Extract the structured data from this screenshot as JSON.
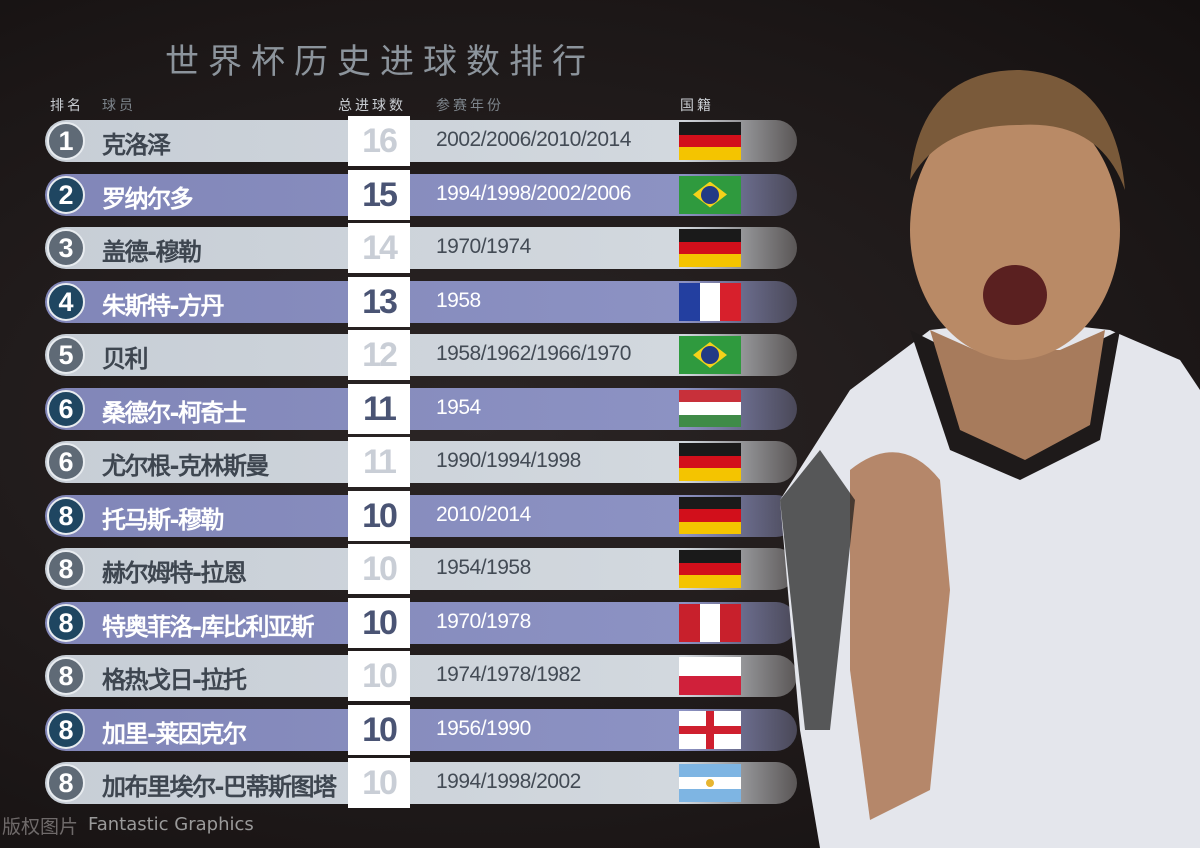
{
  "title": "世界杯历史进球数排行",
  "headers": {
    "rank": "排名",
    "player": "球员",
    "goals": "总进球数",
    "years": "参赛年份",
    "nation": "国籍"
  },
  "chart_data": {
    "type": "table",
    "title": "世界杯历史进球数排行",
    "columns": [
      "排名",
      "球员",
      "总进球数",
      "参赛年份",
      "国籍"
    ],
    "rows": [
      {
        "rank": "1",
        "player": "克洛泽",
        "goals": "16",
        "years": "2002/2006/2010/2014",
        "nation": "germany"
      },
      {
        "rank": "2",
        "player": "罗纳尔多",
        "goals": "15",
        "years": "1994/1998/2002/2006",
        "nation": "brazil"
      },
      {
        "rank": "3",
        "player": "盖德-穆勒",
        "goals": "14",
        "years": "1970/1974",
        "nation": "germany"
      },
      {
        "rank": "4",
        "player": "朱斯特-方丹",
        "goals": "13",
        "years": "1958",
        "nation": "france"
      },
      {
        "rank": "5",
        "player": "贝利",
        "goals": "12",
        "years": "1958/1962/1966/1970",
        "nation": "brazil"
      },
      {
        "rank": "6",
        "player": "桑德尔-柯奇士",
        "goals": "11",
        "years": "1954",
        "nation": "hungary"
      },
      {
        "rank": "6",
        "player": "尤尔根-克林斯曼",
        "goals": "11",
        "years": "1990/1994/1998",
        "nation": "germany"
      },
      {
        "rank": "8",
        "player": "托马斯-穆勒",
        "goals": "10",
        "years": "2010/2014",
        "nation": "germany"
      },
      {
        "rank": "8",
        "player": "赫尔姆特-拉恩",
        "goals": "10",
        "years": "1954/1958",
        "nation": "germany"
      },
      {
        "rank": "8",
        "player": "特奥菲洛-库比利亚斯",
        "goals": "10",
        "years": "1970/1978",
        "nation": "peru"
      },
      {
        "rank": "8",
        "player": "格热戈日-拉托",
        "goals": "10",
        "years": "1974/1978/1982",
        "nation": "poland"
      },
      {
        "rank": "8",
        "player": "加里-莱因克尔",
        "goals": "10",
        "years": "1956/1990",
        "nation": "england"
      },
      {
        "rank": "8",
        "player": "加布里埃尔-巴蒂斯图塔",
        "goals": "10",
        "years": "1994/1998/2002",
        "nation": "argentina"
      }
    ]
  },
  "watermark": "版权图片",
  "credit": "Fantastic Graphics",
  "colors": {
    "light_row": "#cfd5dc",
    "purple_row": "#8a90c1",
    "rank_dark": "#1f4661",
    "rank_grey": "#5f6a76"
  }
}
